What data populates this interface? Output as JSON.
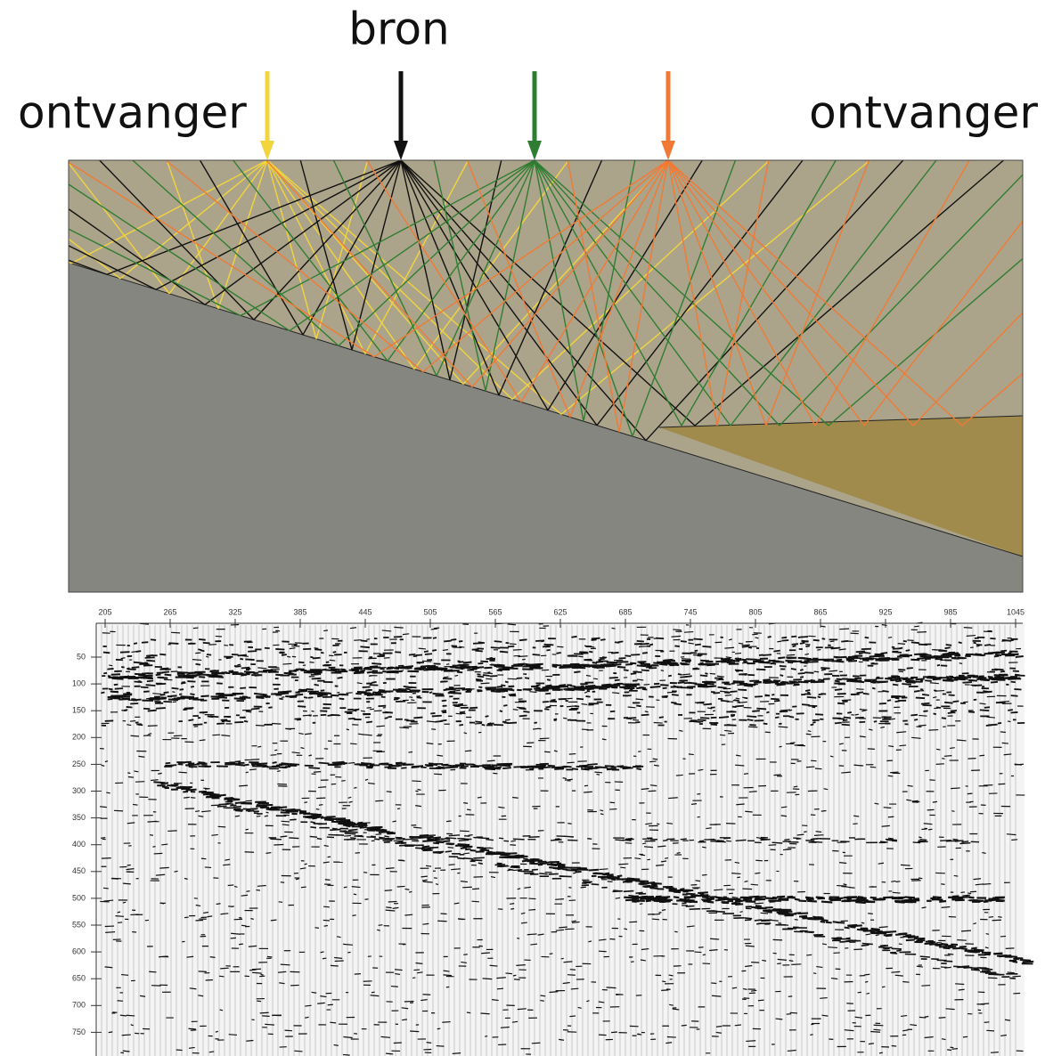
{
  "labels": {
    "source": "bron",
    "receiver_left": "ontvanger",
    "receiver_right": "ontvanger"
  },
  "section": {
    "xticks": [
      "205",
      "265",
      "325",
      "385",
      "445",
      "505",
      "565",
      "625",
      "685",
      "745",
      "805",
      "865",
      "925",
      "985",
      "1045"
    ],
    "yticks": [
      "50",
      "100",
      "150",
      "200",
      "250",
      "300",
      "350",
      "400",
      "450",
      "500",
      "550",
      "600",
      "650",
      "700",
      "750"
    ]
  }
}
